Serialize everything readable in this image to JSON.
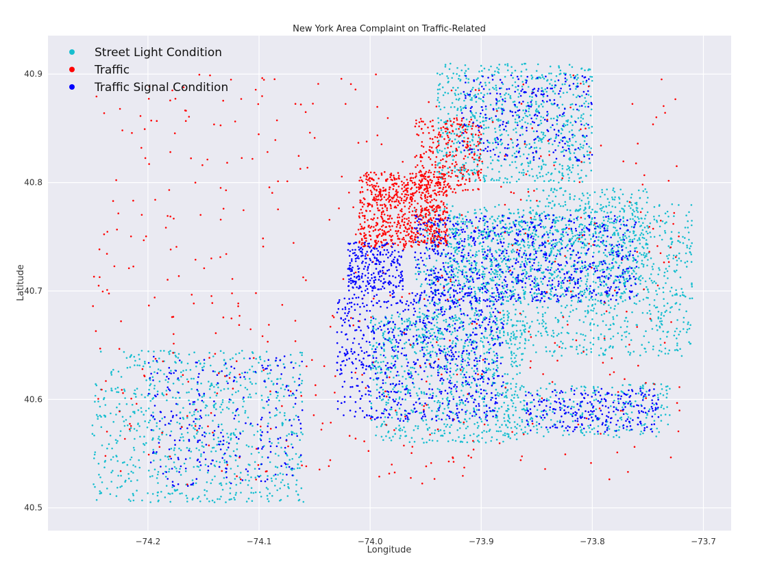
{
  "chart_data": {
    "type": "scatter",
    "title": "New York Area Complaint on Traffic-Related",
    "xlabel": "Longitude",
    "ylabel": "Latitude",
    "xlim": [
      -74.29,
      -73.675
    ],
    "ylim": [
      40.479,
      40.9355
    ],
    "xticks": [
      -74.2,
      -74.1,
      -74.0,
      -73.9,
      -73.8,
      -73.7
    ],
    "xtick_labels": [
      "−74.2",
      "−74.1",
      "−74.0",
      "−73.9",
      "−73.8",
      "−73.7"
    ],
    "yticks": [
      40.5,
      40.6,
      40.7,
      40.8,
      40.9
    ],
    "ytick_labels": [
      "40.5",
      "40.6",
      "40.7",
      "40.8",
      "40.9"
    ],
    "grid": true,
    "legend_position": "top-left",
    "background_color": "#EAEAF2",
    "series": [
      {
        "name": "Street Light Condition",
        "color": "#17BECF",
        "regions": [
          {
            "x": [
              -74.25,
              -74.06
            ],
            "y": [
              40.505,
              40.645
            ],
            "weight": 3
          },
          {
            "x": [
              -74.0,
              -73.86
            ],
            "y": [
              40.56,
              40.68
            ],
            "weight": 3
          },
          {
            "x": [
              -73.96,
              -73.71
            ],
            "y": [
              40.64,
              40.78
            ],
            "weight": 5
          },
          {
            "x": [
              -73.94,
              -73.8
            ],
            "y": [
              40.8,
              40.91
            ],
            "weight": 3
          },
          {
            "x": [
              -73.88,
              -73.73
            ],
            "y": [
              40.565,
              40.615
            ],
            "weight": 1
          },
          {
            "x": [
              -73.86,
              -73.75
            ],
            "y": [
              40.69,
              40.795
            ],
            "weight": 2
          },
          {
            "x": [
              -73.93,
              -73.86
            ],
            "y": [
              40.69,
              40.77
            ],
            "weight": 1
          }
        ]
      },
      {
        "name": "Traffic",
        "color": "#FF0000",
        "regions": [
          {
            "x": [
              -74.01,
              -73.93
            ],
            "y": [
              40.74,
              40.81
            ],
            "weight": 3
          },
          {
            "x": [
              -73.96,
              -73.9
            ],
            "y": [
              40.79,
              40.86
            ],
            "weight": 1
          },
          {
            "x": [
              -74.25,
              -73.72
            ],
            "y": [
              40.52,
              40.9
            ],
            "weight": 2
          }
        ]
      },
      {
        "name": "Traffic Signal Condition",
        "color": "#0000FF",
        "regions": [
          {
            "x": [
              -74.02,
              -73.97
            ],
            "y": [
              40.7,
              40.745
            ],
            "weight": 1
          },
          {
            "x": [
              -74.03,
              -73.88
            ],
            "y": [
              40.58,
              40.7
            ],
            "weight": 3
          },
          {
            "x": [
              -73.96,
              -73.76
            ],
            "y": [
              40.69,
              40.77
            ],
            "weight": 3
          },
          {
            "x": [
              -73.92,
              -73.8
            ],
            "y": [
              40.82,
              40.9
            ],
            "weight": 1
          },
          {
            "x": [
              -74.2,
              -74.06
            ],
            "y": [
              40.52,
              40.64
            ],
            "weight": 1
          },
          {
            "x": [
              -73.86,
              -73.74
            ],
            "y": [
              40.57,
              40.61
            ],
            "weight": 1
          }
        ]
      }
    ]
  }
}
